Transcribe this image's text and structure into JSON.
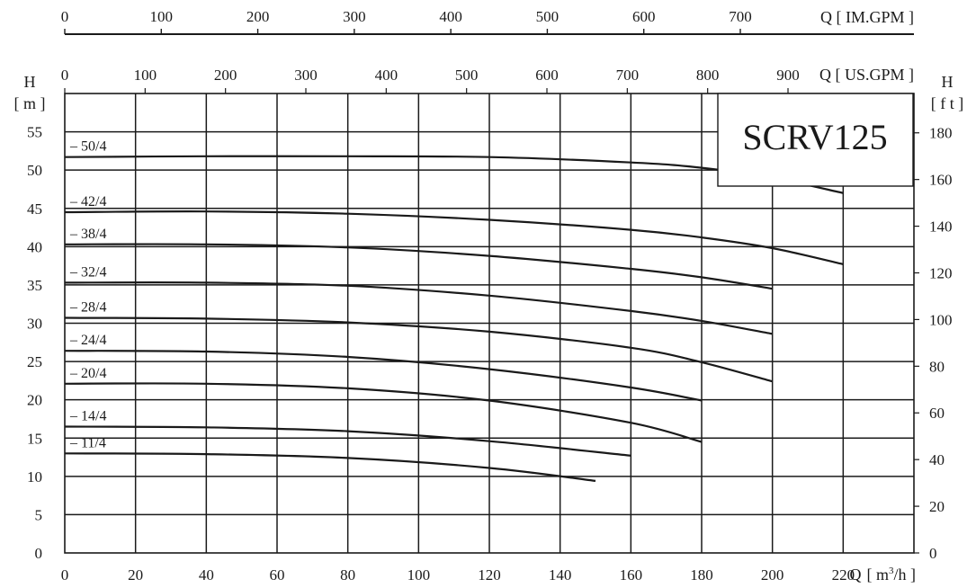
{
  "chart_data": {
    "type": "line",
    "title": "SCRV125",
    "x_axes": {
      "bottom": {
        "unit_label": "Q [ m³/h ]",
        "q": "Q",
        "unit_open": "[ m",
        "unit_sup": "3",
        "unit_close": "/h ]",
        "ticks": [
          0,
          20,
          40,
          60,
          80,
          100,
          120,
          140,
          160,
          180,
          200,
          220
        ],
        "range": [
          0,
          240
        ]
      },
      "top_us": {
        "unit_label": "Q [ US.GPM ]",
        "ticks": [
          0,
          100,
          200,
          300,
          400,
          500,
          600,
          700,
          800,
          900
        ],
        "range_gpm": [
          0,
          1056.7
        ]
      },
      "top_im": {
        "unit_label": "Q [ IM.GPM ]",
        "ticks": [
          0,
          100,
          200,
          300,
          400,
          500,
          600,
          700
        ],
        "range_gpm": [
          0,
          879.9
        ]
      }
    },
    "y_axes": {
      "left": {
        "label": "H",
        "unit": "[ m ]",
        "ticks": [
          0,
          5,
          10,
          15,
          20,
          25,
          30,
          35,
          40,
          45,
          50,
          55
        ],
        "range": [
          0,
          60
        ]
      },
      "right": {
        "label": "H",
        "unit": "[ f t ]",
        "ticks": [
          0,
          20,
          40,
          60,
          80,
          100,
          120,
          140,
          160,
          180
        ],
        "range_ft": [
          0,
          196.85
        ]
      }
    },
    "grid": true,
    "series": [
      {
        "name": "50/4",
        "x": [
          0,
          40,
          80,
          120,
          160,
          180,
          200,
          220
        ],
        "y": [
          51.7,
          51.8,
          51.8,
          51.7,
          51.0,
          50.3,
          49.0,
          47.0
        ]
      },
      {
        "name": "42/4",
        "x": [
          0,
          40,
          80,
          120,
          160,
          180,
          200,
          220
        ],
        "y": [
          44.5,
          44.6,
          44.3,
          43.5,
          42.2,
          41.2,
          39.8,
          37.7
        ]
      },
      {
        "name": "38/4",
        "x": [
          0,
          40,
          80,
          120,
          160,
          180,
          200
        ],
        "y": [
          40.3,
          40.3,
          39.9,
          38.8,
          37.1,
          36.0,
          34.5
        ]
      },
      {
        "name": "32/4",
        "x": [
          0,
          40,
          80,
          120,
          160,
          180,
          200
        ],
        "y": [
          35.3,
          35.3,
          34.9,
          33.6,
          31.6,
          30.3,
          28.6
        ]
      },
      {
        "name": "28/4",
        "x": [
          0,
          40,
          80,
          120,
          160,
          180,
          200
        ],
        "y": [
          30.7,
          30.6,
          30.1,
          28.9,
          26.8,
          24.9,
          22.4
        ]
      },
      {
        "name": "24/4",
        "x": [
          0,
          40,
          80,
          120,
          160,
          180
        ],
        "y": [
          26.4,
          26.3,
          25.6,
          24.0,
          21.6,
          19.9
        ]
      },
      {
        "name": "20/4",
        "x": [
          0,
          40,
          80,
          120,
          160,
          180
        ],
        "y": [
          22.1,
          22.1,
          21.5,
          19.9,
          17.0,
          14.5
        ]
      },
      {
        "name": "14/4",
        "x": [
          0,
          40,
          80,
          120,
          160
        ],
        "y": [
          16.5,
          16.4,
          15.9,
          14.6,
          12.7
        ]
      },
      {
        "name": "11/4",
        "x": [
          0,
          40,
          80,
          120,
          150
        ],
        "y": [
          13.0,
          12.9,
          12.4,
          11.1,
          9.4
        ]
      }
    ]
  }
}
